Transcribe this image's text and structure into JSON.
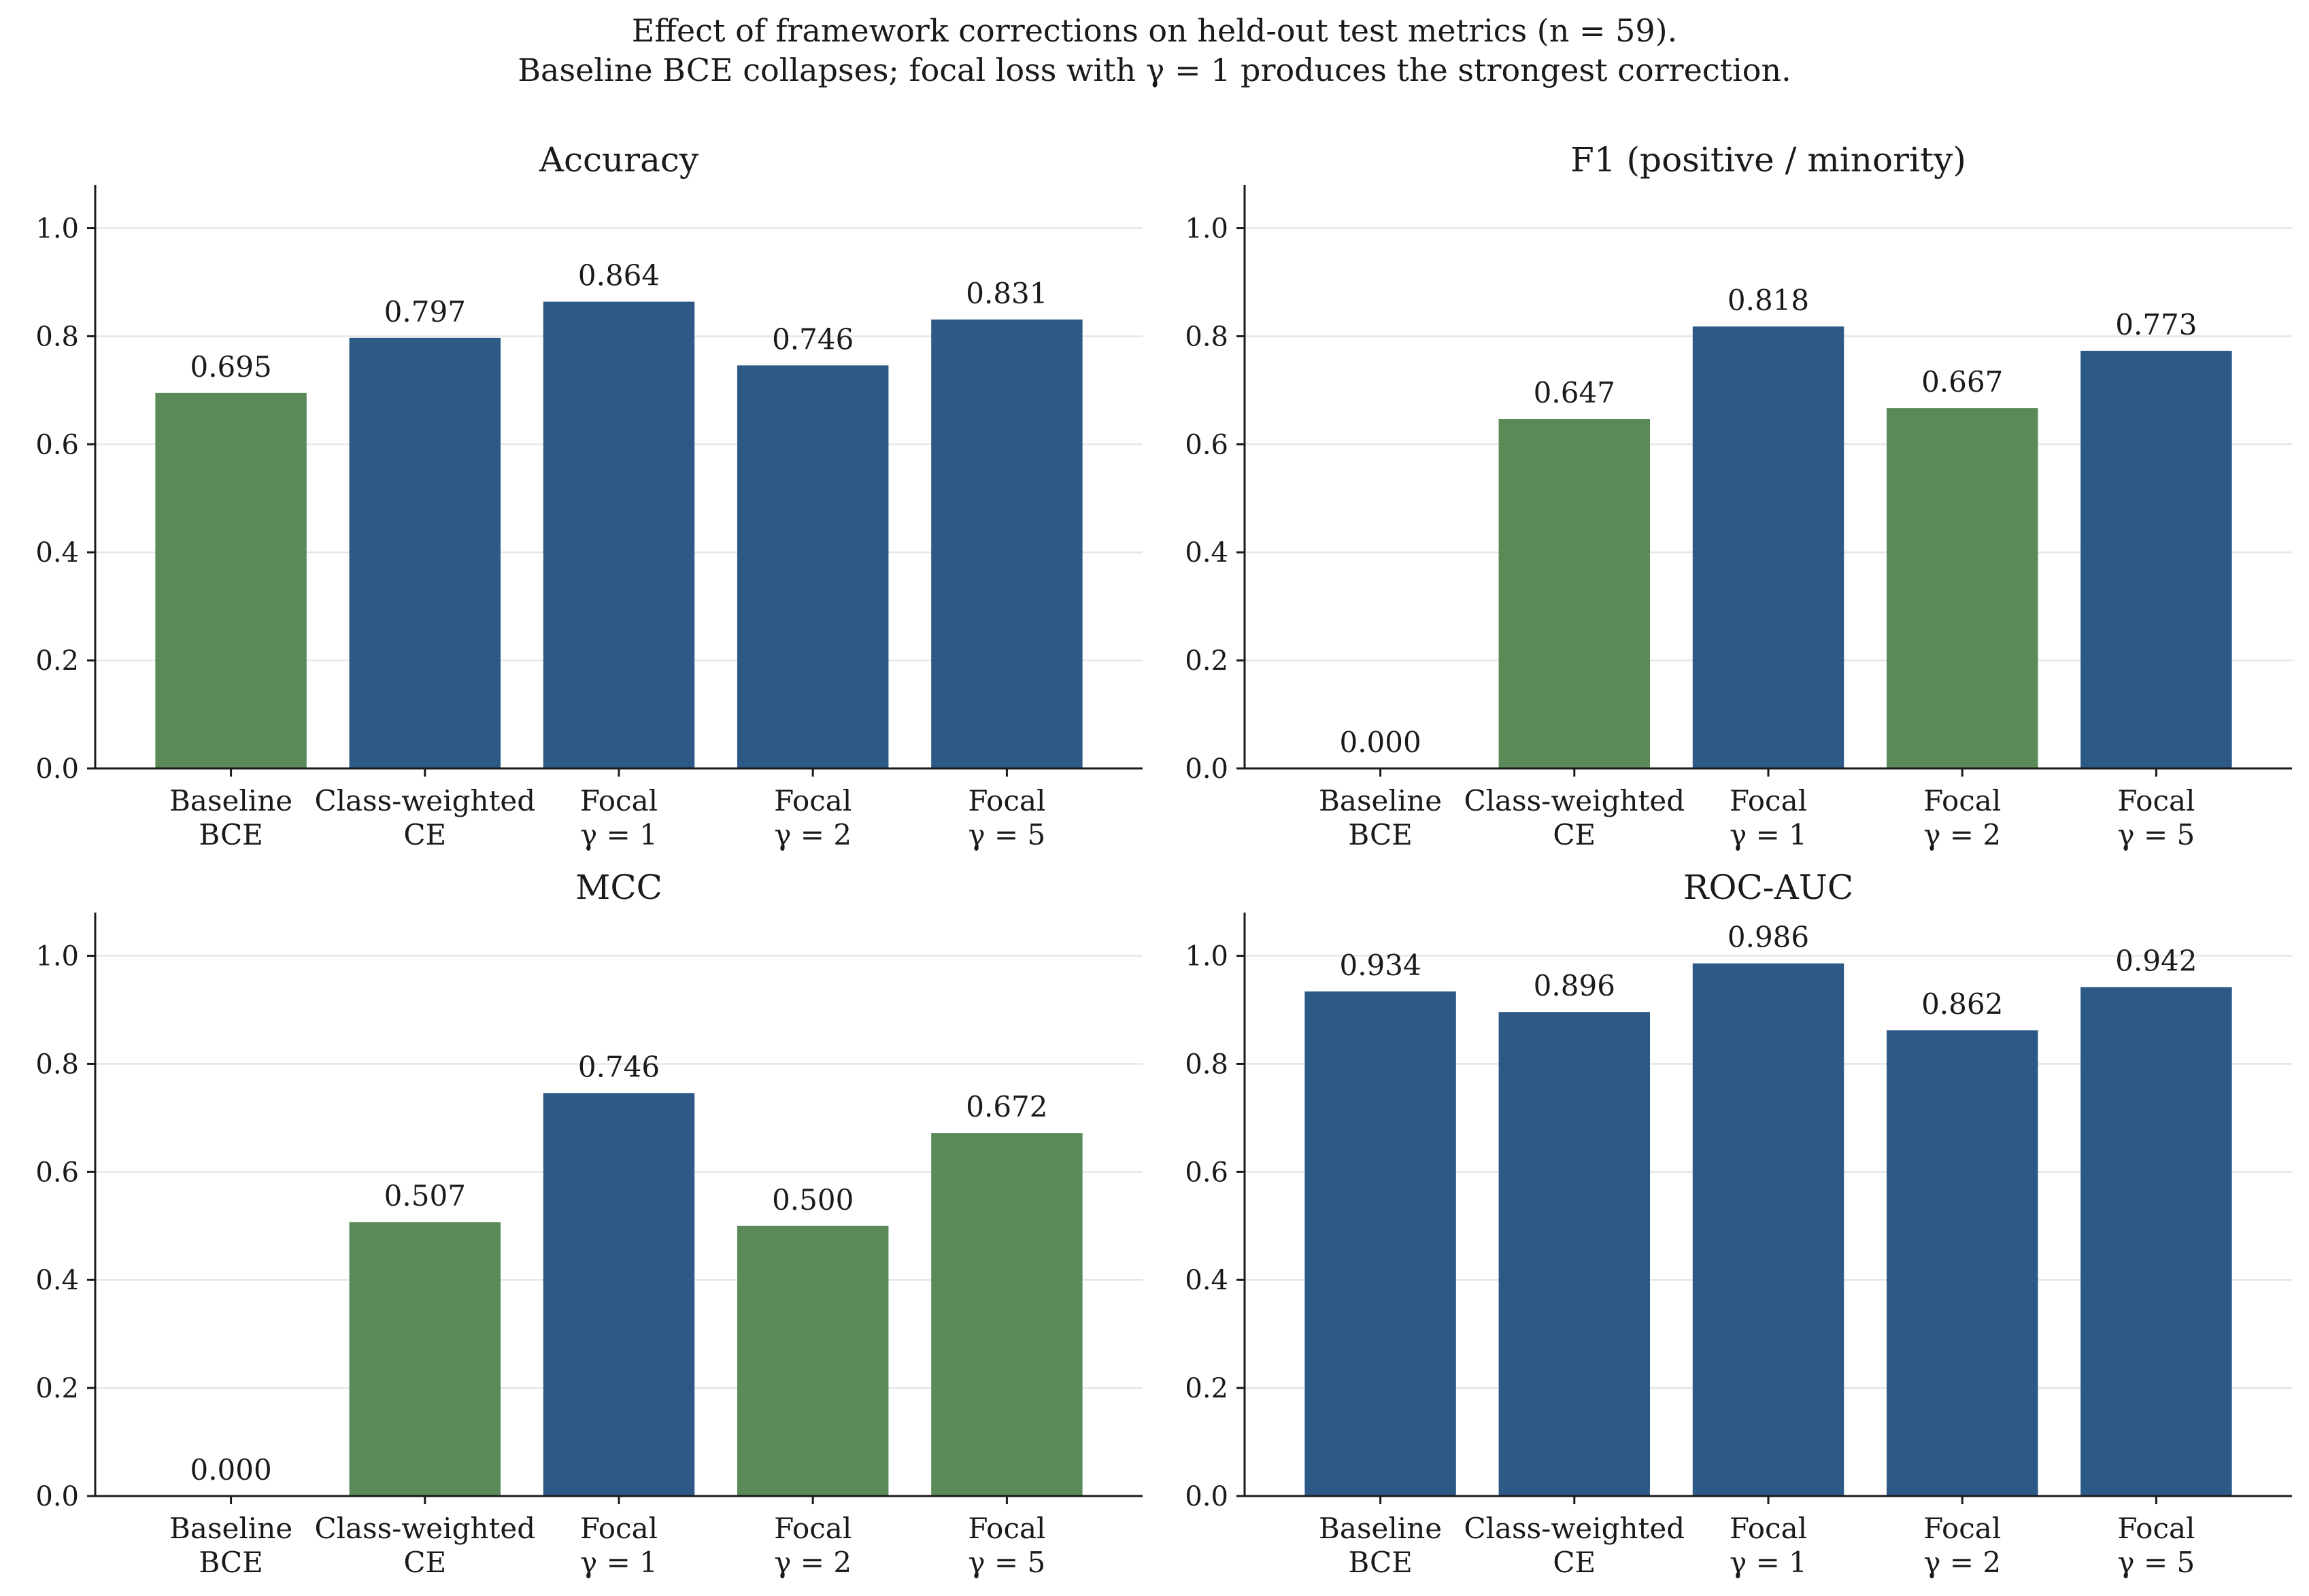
{
  "figure": {
    "title_line1": "Effect of framework corrections on held-out test metrics (n = 59).",
    "title_line2": "Baseline BCE collapses; focal loss with γ = 1 produces the strongest correction."
  },
  "colors": {
    "green": "#5b8a59",
    "blue": "#2d5986",
    "grid": "#e6e6e6",
    "axis": "#1a1a1a"
  },
  "chart_data": [
    {
      "type": "bar",
      "title": "Accuracy",
      "categories": [
        "Baseline\nBCE",
        "Class-weighted\nCE",
        "Focal\nγ = 1",
        "Focal\nγ = 2",
        "Focal\nγ = 5"
      ],
      "values": [
        0.695,
        0.797,
        0.864,
        0.746,
        0.831
      ],
      "labels": [
        "0.695",
        "0.797",
        "0.864",
        "0.746",
        "0.831"
      ],
      "bar_colors": [
        "green",
        "blue",
        "blue",
        "blue",
        "blue"
      ],
      "ylim": [
        0,
        1.08
      ],
      "yticks": [
        "0.0",
        "0.2",
        "0.4",
        "0.6",
        "0.8",
        "1.0"
      ],
      "grid": "y"
    },
    {
      "type": "bar",
      "title": "F1 (positive / minority)",
      "categories": [
        "Baseline\nBCE",
        "Class-weighted\nCE",
        "Focal\nγ = 1",
        "Focal\nγ = 2",
        "Focal\nγ = 5"
      ],
      "values": [
        0.0,
        0.647,
        0.818,
        0.667,
        0.773
      ],
      "labels": [
        "0.000",
        "0.647",
        "0.818",
        "0.667",
        "0.773"
      ],
      "bar_colors": [
        "green",
        "green",
        "blue",
        "green",
        "blue"
      ],
      "ylim": [
        0,
        1.08
      ],
      "yticks": [
        "0.0",
        "0.2",
        "0.4",
        "0.6",
        "0.8",
        "1.0"
      ],
      "grid": "y"
    },
    {
      "type": "bar",
      "title": "MCC",
      "categories": [
        "Baseline\nBCE",
        "Class-weighted\nCE",
        "Focal\nγ = 1",
        "Focal\nγ = 2",
        "Focal\nγ = 5"
      ],
      "values": [
        0.0,
        0.507,
        0.746,
        0.5,
        0.672
      ],
      "labels": [
        "0.000",
        "0.507",
        "0.746",
        "0.500",
        "0.672"
      ],
      "bar_colors": [
        "green",
        "green",
        "blue",
        "green",
        "green"
      ],
      "ylim": [
        0,
        1.08
      ],
      "yticks": [
        "0.0",
        "0.2",
        "0.4",
        "0.6",
        "0.8",
        "1.0"
      ],
      "grid": "y"
    },
    {
      "type": "bar",
      "title": "ROC-AUC",
      "categories": [
        "Baseline\nBCE",
        "Class-weighted\nCE",
        "Focal\nγ = 1",
        "Focal\nγ = 2",
        "Focal\nγ = 5"
      ],
      "values": [
        0.934,
        0.896,
        0.986,
        0.862,
        0.942
      ],
      "labels": [
        "0.934",
        "0.896",
        "0.986",
        "0.862",
        "0.942"
      ],
      "bar_colors": [
        "blue",
        "blue",
        "blue",
        "blue",
        "blue"
      ],
      "ylim": [
        0,
        1.08
      ],
      "yticks": [
        "0.0",
        "0.2",
        "0.4",
        "0.6",
        "0.8",
        "1.0"
      ],
      "grid": "y"
    }
  ]
}
